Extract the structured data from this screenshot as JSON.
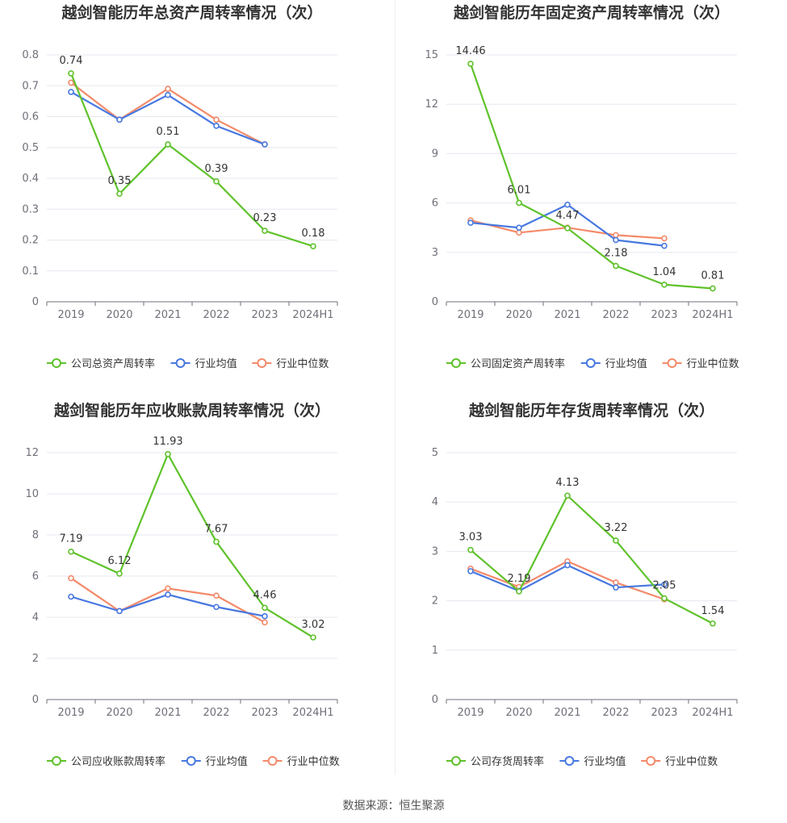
{
  "source_label": "数据来源：恒生聚源",
  "colors": {
    "company": "#5fc22b",
    "avg": "#4878e0",
    "median": "#f48a6a"
  },
  "chart_data": [
    {
      "type": "line",
      "title": "越剑智能历年总资产周转率情况（次）",
      "categories": [
        "2019",
        "2020",
        "2021",
        "2022",
        "2023",
        "2024H1"
      ],
      "ylim": [
        0,
        0.8
      ],
      "yticks": [
        0,
        0.1,
        0.2,
        0.3,
        0.4,
        0.5,
        0.6,
        0.7,
        0.8
      ],
      "ytick_labels": [
        "0",
        "0.1",
        "0.2",
        "0.3",
        "0.4",
        "0.5",
        "0.6",
        "0.7",
        "0.8"
      ],
      "series": [
        {
          "name": "公司总资产周转率",
          "key": "company",
          "values": [
            0.74,
            0.35,
            0.51,
            0.39,
            0.23,
            0.18
          ],
          "labels": [
            "0.74",
            "0.35",
            "0.51",
            "0.39",
            "0.23",
            "0.18"
          ]
        },
        {
          "name": "行业均值",
          "key": "avg",
          "values": [
            0.68,
            0.59,
            0.67,
            0.57,
            0.51,
            null
          ]
        },
        {
          "name": "行业中位数",
          "key": "median",
          "values": [
            0.71,
            0.59,
            0.69,
            0.59,
            0.51,
            null
          ]
        }
      ]
    },
    {
      "type": "line",
      "title": "越剑智能历年固定资产周转率情况（次）",
      "categories": [
        "2019",
        "2020",
        "2021",
        "2022",
        "2023",
        "2024H1"
      ],
      "ylim": [
        0,
        15
      ],
      "yticks": [
        0,
        3,
        6,
        9,
        12,
        15
      ],
      "ytick_labels": [
        "0",
        "3",
        "6",
        "9",
        "12",
        "15"
      ],
      "series": [
        {
          "name": "公司固定资产周转率",
          "key": "company",
          "values": [
            14.46,
            6.01,
            4.47,
            2.18,
            1.04,
            0.81
          ],
          "labels": [
            "14.46",
            "6.01",
            "4.47",
            "2.18",
            "1.04",
            "0.81"
          ]
        },
        {
          "name": "行业均值",
          "key": "avg",
          "values": [
            4.8,
            4.5,
            5.9,
            3.75,
            3.4,
            null
          ]
        },
        {
          "name": "行业中位数",
          "key": "median",
          "values": [
            4.95,
            4.2,
            4.5,
            4.05,
            3.85,
            null
          ]
        }
      ]
    },
    {
      "type": "line",
      "title": "越剑智能历年应收账款周转率情况（次）",
      "categories": [
        "2019",
        "2020",
        "2021",
        "2022",
        "2023",
        "2024H1"
      ],
      "ylim": [
        0,
        12
      ],
      "yticks": [
        0,
        2,
        4,
        6,
        8,
        10,
        12
      ],
      "ytick_labels": [
        "0",
        "2",
        "4",
        "6",
        "8",
        "10",
        "12"
      ],
      "series": [
        {
          "name": "公司应收账款周转率",
          "key": "company",
          "values": [
            7.19,
            6.12,
            11.93,
            7.67,
            4.46,
            3.02
          ],
          "labels": [
            "7.19",
            "6.12",
            "11.93",
            "7.67",
            "4.46",
            "3.02"
          ]
        },
        {
          "name": "行业均值",
          "key": "avg",
          "values": [
            5.0,
            4.3,
            5.1,
            4.5,
            4.05,
            null
          ]
        },
        {
          "name": "行业中位数",
          "key": "median",
          "values": [
            5.9,
            4.3,
            5.4,
            5.05,
            3.75,
            null
          ]
        }
      ]
    },
    {
      "type": "line",
      "title": "越剑智能历年存货周转率情况（次）",
      "categories": [
        "2019",
        "2020",
        "2021",
        "2022",
        "2023",
        "2024H1"
      ],
      "ylim": [
        0,
        5
      ],
      "yticks": [
        0,
        1,
        2,
        3,
        4,
        5
      ],
      "ytick_labels": [
        "0",
        "1",
        "2",
        "3",
        "4",
        "5"
      ],
      "series": [
        {
          "name": "公司存货周转率",
          "key": "company",
          "values": [
            3.03,
            2.19,
            4.13,
            3.22,
            2.05,
            1.54
          ],
          "labels": [
            "3.03",
            "2.19",
            "4.13",
            "3.22",
            "2.05",
            "1.54"
          ]
        },
        {
          "name": "行业均值",
          "key": "avg",
          "values": [
            2.6,
            2.2,
            2.72,
            2.27,
            2.33,
            null
          ]
        },
        {
          "name": "行业中位数",
          "key": "median",
          "values": [
            2.65,
            2.28,
            2.8,
            2.37,
            2.03,
            null
          ]
        }
      ]
    }
  ]
}
